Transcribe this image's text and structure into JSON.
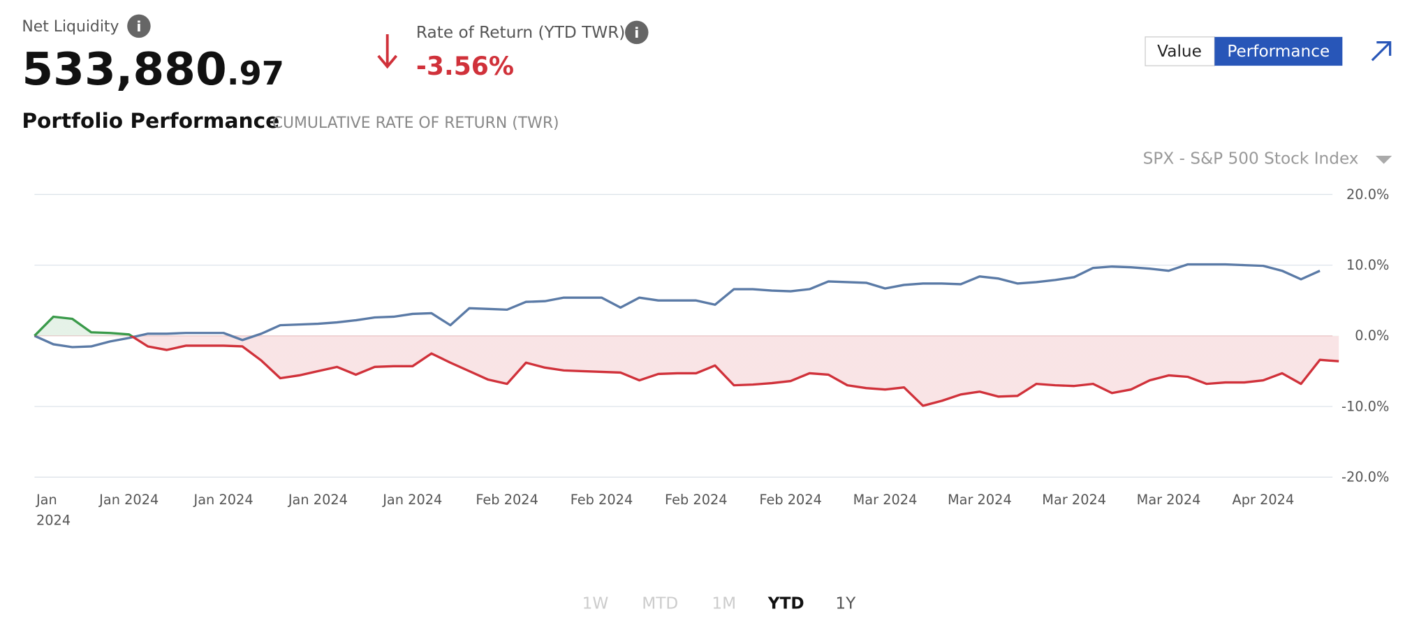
{
  "header": {
    "net_liquidity_label": "Net Liquidity",
    "net_liquidity_whole": "533,880",
    "net_liquidity_cents": ".97",
    "return_label": "Rate of Return (YTD TWR)",
    "return_value": "-3.56%"
  },
  "view_toggle": [
    "Value",
    "Performance"
  ],
  "chart_data": {
    "type": "line",
    "title": "Portfolio Performance",
    "subtitle": "CUMULATIVE RATE OF RETURN (TWR)",
    "categories": [
      "Jan 2024",
      null,
      null,
      null,
      null,
      "Jan 2024",
      null,
      null,
      null,
      null,
      "Jan 2024",
      null,
      null,
      null,
      null,
      "Jan 2024",
      null,
      null,
      null,
      null,
      "Jan 2024",
      null,
      null,
      null,
      null,
      "Feb 2024",
      null,
      null,
      null,
      null,
      "Feb 2024",
      null,
      null,
      null,
      null,
      "Feb 2024",
      null,
      null,
      null,
      null,
      "Feb 2024",
      null,
      null,
      null,
      null,
      "Mar 2024",
      null,
      null,
      null,
      null,
      "Mar 2024",
      null,
      null,
      null,
      null,
      "Mar 2024",
      null,
      null,
      null,
      null,
      "Mar 2024",
      null,
      null,
      null,
      null,
      "Apr 2024",
      null,
      null,
      null,
      null
    ],
    "series": [
      {
        "color": "#d0313a",
        "positive_color": "#3a9a4a",
        "values": [
          0,
          2.7,
          2.4,
          0.5,
          0.4,
          0.2,
          -1.5,
          -2.0,
          -1.4,
          -1.4,
          -1.4,
          -1.5,
          -3.5,
          -6.0,
          -5.6,
          -5.0,
          -4.4,
          -5.5,
          -4.4,
          -4.3,
          -4.3,
          -2.5,
          -3.8,
          -5.0,
          -6.2,
          -6.8,
          -3.8,
          -4.5,
          -4.9,
          -5.0,
          -5.1,
          -5.2,
          -6.3,
          -5.4,
          -5.3,
          -5.3,
          -4.2,
          -7.0,
          -6.9,
          -6.7,
          -6.4,
          -5.3,
          -5.5,
          -7.0,
          -7.4,
          -7.6,
          -7.3,
          -9.9,
          -9.2,
          -8.3,
          -7.9,
          -8.6,
          -8.5,
          -6.8,
          -7.0,
          -7.1,
          -6.8,
          -8.1,
          -7.6,
          -6.3,
          -5.6,
          -5.8,
          -6.8,
          -6.6,
          -6.6,
          -6.3,
          -5.3,
          -6.8,
          -3.4,
          -3.6
        ]
      },
      {
        "name": "SPX - S&P 500 Stock Index",
        "color": "#5a7aa6",
        "values": [
          0,
          -1.2,
          -1.6,
          -1.5,
          -0.8,
          -0.3,
          0.3,
          0.3,
          0.4,
          0.4,
          0.4,
          -0.6,
          0.3,
          1.5,
          1.6,
          1.7,
          1.9,
          2.2,
          2.6,
          2.7,
          3.1,
          3.2,
          1.5,
          3.9,
          3.8,
          3.7,
          4.8,
          4.9,
          5.4,
          5.4,
          5.4,
          4.0,
          5.4,
          5.0,
          5.0,
          5.0,
          4.4,
          6.6,
          6.6,
          6.4,
          6.3,
          6.6,
          7.7,
          7.6,
          7.5,
          6.7,
          7.2,
          7.4,
          7.4,
          7.3,
          8.4,
          8.1,
          7.4,
          7.6,
          7.9,
          8.3,
          9.6,
          9.8,
          9.7,
          9.5,
          9.2,
          10.1,
          10.1,
          10.1,
          10.0,
          9.9,
          9.2,
          8.0,
          9.2,
          null
        ]
      }
    ],
    "ylim": [
      -20,
      20
    ],
    "yticks": [
      {
        "value": -20,
        "label": "-20.0%"
      },
      {
        "value": -10,
        "label": "-10.0%"
      },
      {
        "value": 0,
        "label": "0.0%"
      },
      {
        "value": 10,
        "label": "10.0%"
      },
      {
        "value": 20,
        "label": "20.0%"
      }
    ],
    "grid": true
  },
  "range_buttons": [
    "1W",
    "MTD",
    "1M",
    "YTD",
    "1Y"
  ],
  "active_range": 3
}
